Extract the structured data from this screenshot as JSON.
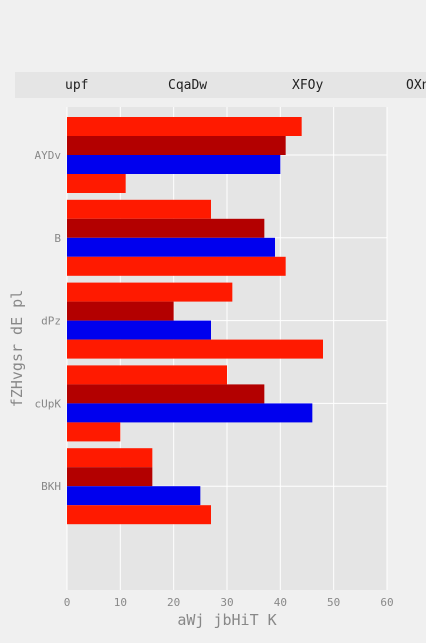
{
  "chart_data": {
    "type": "bar",
    "orientation": "horizontal",
    "categories": [
      "AYDv",
      "B",
      "dPz",
      "cUpK",
      "BKH"
    ],
    "series": [
      {
        "name": "upf",
        "color": "#ff1a00",
        "values": [
          44,
          27,
          31,
          30,
          16
        ]
      },
      {
        "name": "CqaDw",
        "color": "#b30000",
        "values": [
          41,
          37,
          20,
          37,
          16
        ]
      },
      {
        "name": "XFOy",
        "color": "#0000ee",
        "values": [
          40,
          39,
          27,
          46,
          25
        ]
      },
      {
        "name": "OXn",
        "color": "#ff1a00",
        "values": [
          11,
          41,
          48,
          10,
          27
        ]
      }
    ],
    "xlabel": "aWj jbHiT K",
    "ylabel": "fZHvgsr dE pl",
    "xlim": [
      0,
      60
    ],
    "xticks": [
      0,
      10,
      20,
      30,
      40,
      50,
      60
    ],
    "grid": true,
    "legend_position": "top"
  },
  "colors": {
    "page_background": "#f0f0f0",
    "plot_background": "#e5e5e5",
    "grid": "#ffffff",
    "legend_background": "#e5e5e5",
    "text": "#888888",
    "legend_text": "#222222"
  }
}
